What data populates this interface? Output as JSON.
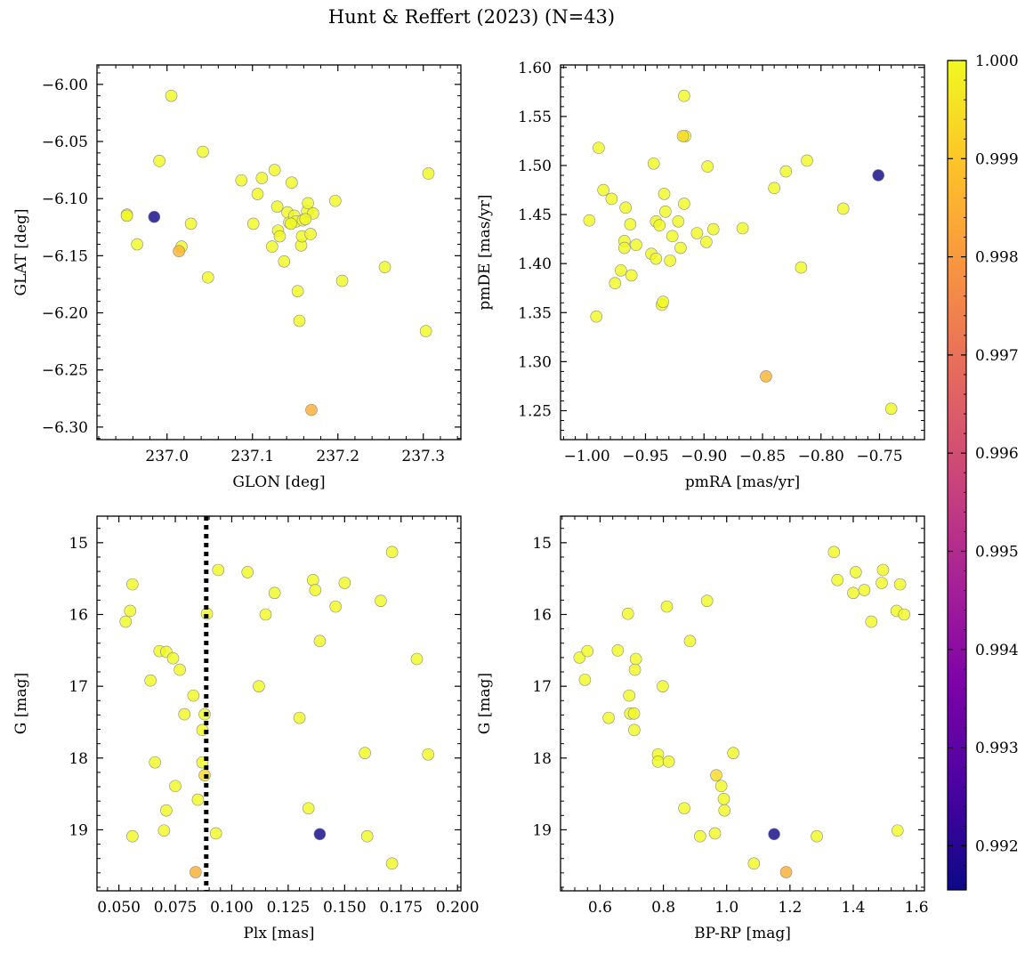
{
  "chart_data": {
    "type": "scatter",
    "title": "Hunt & Reffert (2023) (N=43)",
    "colorbar": {
      "colormap": "plasma",
      "vmin": 0.99155,
      "vmax": 1.0,
      "ticks": [
        0.992,
        0.993,
        0.994,
        0.995,
        0.996,
        0.997,
        0.998,
        0.999,
        1.0
      ],
      "tick_labels": [
        "0.992",
        "0.993",
        "0.994",
        "0.995",
        "0.996",
        "0.997",
        "0.998",
        "0.999",
        "1.000"
      ],
      "location": "right"
    },
    "panels": [
      {
        "id": "glon-glat",
        "xlabel": "GLON [deg]",
        "ylabel": "GLAT [deg]",
        "xlim": [
          236.918,
          237.344
        ],
        "ylim": [
          -6.311,
          -5.983
        ],
        "invert_y": false,
        "xticks": [
          237.0,
          237.1,
          237.2,
          237.3
        ],
        "xtick_labels": [
          "237.0",
          "237.1",
          "237.2",
          "237.3"
        ],
        "yticks": [
          -6.3,
          -6.25,
          -6.2,
          -6.15,
          -6.1,
          -6.05,
          -6.0
        ],
        "ytick_labels": [
          "−6.30",
          "−6.25",
          "−6.20",
          "−6.15",
          "−6.10",
          "−6.05",
          "−6.00"
        ],
        "points": [
          [
            236.953,
            -6.114,
            1.0
          ],
          [
            236.953,
            -6.115,
            1.0
          ],
          [
            236.985,
            -6.116,
            0.9916
          ],
          [
            236.965,
            -6.14,
            1.0
          ],
          [
            236.991,
            -6.067,
            1.0
          ],
          [
            237.005,
            -6.01,
            1.0
          ],
          [
            237.014,
            -6.146,
            0.9986
          ],
          [
            237.017,
            -6.142,
            1.0
          ],
          [
            237.028,
            -6.122,
            1.0
          ],
          [
            237.042,
            -6.059,
            1.0
          ],
          [
            237.048,
            -6.169,
            1.0
          ],
          [
            237.087,
            -6.084,
            1.0
          ],
          [
            237.101,
            -6.122,
            1.0
          ],
          [
            237.106,
            -6.096,
            1.0
          ],
          [
            237.111,
            -6.082,
            1.0
          ],
          [
            237.123,
            -6.142,
            1.0
          ],
          [
            237.126,
            -6.075,
            1.0
          ],
          [
            237.129,
            -6.107,
            1.0
          ],
          [
            237.13,
            -6.128,
            1.0
          ],
          [
            237.132,
            -6.133,
            1.0
          ],
          [
            237.137,
            -6.155,
            1.0
          ],
          [
            237.141,
            -6.112,
            1.0
          ],
          [
            237.143,
            -6.121,
            1.0
          ],
          [
            237.146,
            -6.086,
            1.0
          ],
          [
            237.149,
            -6.115,
            1.0
          ],
          [
            237.151,
            -6.12,
            1.0
          ],
          [
            237.153,
            -6.181,
            1.0
          ],
          [
            237.155,
            -6.207,
            1.0
          ],
          [
            237.157,
            -6.141,
            1.0
          ],
          [
            237.158,
            -6.133,
            1.0
          ],
          [
            237.159,
            -6.119,
            1.0
          ],
          [
            237.164,
            -6.111,
            1.0
          ],
          [
            237.165,
            -6.104,
            1.0
          ],
          [
            237.168,
            -6.131,
            1.0
          ],
          [
            237.169,
            -6.285,
            0.9985
          ],
          [
            237.171,
            -6.113,
            1.0
          ],
          [
            237.197,
            -6.102,
            1.0
          ],
          [
            237.205,
            -6.172,
            1.0
          ],
          [
            237.255,
            -6.16,
            1.0
          ],
          [
            237.303,
            -6.216,
            1.0
          ],
          [
            237.306,
            -6.078,
            1.0
          ],
          [
            237.162,
            -6.118,
            1.0
          ],
          [
            237.145,
            -6.122,
            1.0
          ]
        ]
      },
      {
        "id": "pmra-pmde",
        "xlabel": "pmRA [mas/yr]",
        "ylabel": "pmDE [mas/yr]",
        "xlim": [
          -1.0226,
          -0.7116
        ],
        "ylim": [
          1.2205,
          1.6025
        ],
        "invert_y": false,
        "xticks": [
          -1.0,
          -0.95,
          -0.9,
          -0.85,
          -0.8,
          -0.75
        ],
        "xtick_labels": [
          "−1.00",
          "−0.95",
          "−0.90",
          "−0.85",
          "−0.80",
          "−0.75"
        ],
        "yticks": [
          1.25,
          1.3,
          1.35,
          1.4,
          1.45,
          1.5,
          1.55,
          1.6
        ],
        "ytick_labels": [
          "1.25",
          "1.30",
          "1.35",
          "1.40",
          "1.45",
          "1.50",
          "1.55",
          "1.60"
        ],
        "points": [
          [
            -0.998,
            1.444,
            1.0
          ],
          [
            -0.99,
            1.518,
            1.0
          ],
          [
            -0.992,
            1.346,
            1.0
          ],
          [
            -0.986,
            1.475,
            1.0
          ],
          [
            -0.979,
            1.466,
            1.0
          ],
          [
            -0.976,
            1.38,
            1.0
          ],
          [
            -0.971,
            1.393,
            1.0
          ],
          [
            -0.968,
            1.423,
            1.0
          ],
          [
            -0.968,
            1.416,
            1.0
          ],
          [
            -0.967,
            1.457,
            1.0
          ],
          [
            -0.963,
            1.44,
            1.0
          ],
          [
            -0.962,
            1.388,
            1.0
          ],
          [
            -0.958,
            1.419,
            1.0
          ],
          [
            -0.945,
            1.41,
            1.0
          ],
          [
            -0.943,
            1.502,
            1.0
          ],
          [
            -0.941,
            1.443,
            1.0
          ],
          [
            -0.941,
            1.405,
            1.0
          ],
          [
            -0.938,
            1.439,
            1.0
          ],
          [
            -0.936,
            1.358,
            1.0
          ],
          [
            -0.935,
            1.361,
            1.0
          ],
          [
            -0.934,
            1.471,
            1.0
          ],
          [
            -0.933,
            1.453,
            1.0
          ],
          [
            -0.929,
            1.403,
            1.0
          ],
          [
            -0.927,
            1.428,
            1.0
          ],
          [
            -0.922,
            1.443,
            1.0
          ],
          [
            -0.92,
            1.416,
            1.0
          ],
          [
            -0.918,
            1.53,
            0.9994
          ],
          [
            -0.917,
            1.571,
            1.0
          ],
          [
            -0.917,
            1.461,
            1.0
          ],
          [
            -0.916,
            1.53,
            1.0
          ],
          [
            -0.906,
            1.431,
            1.0
          ],
          [
            -0.898,
            1.422,
            1.0
          ],
          [
            -0.897,
            1.499,
            1.0
          ],
          [
            -0.892,
            1.435,
            1.0
          ],
          [
            -0.867,
            1.436,
            1.0
          ],
          [
            -0.847,
            1.285,
            0.9986
          ],
          [
            -0.84,
            1.477,
            1.0
          ],
          [
            -0.83,
            1.494,
            1.0
          ],
          [
            -0.817,
            1.396,
            1.0
          ],
          [
            -0.812,
            1.505,
            1.0
          ],
          [
            -0.781,
            1.456,
            1.0
          ],
          [
            -0.751,
            1.49,
            0.9916
          ],
          [
            -0.74,
            1.252,
            1.0
          ]
        ]
      },
      {
        "id": "plx-g",
        "xlabel": "Plx [mas]",
        "ylabel": "G [mag]",
        "xlim": [
          0.0403,
          0.2015
        ],
        "ylim": [
          19.85,
          14.63
        ],
        "invert_y": true,
        "vline": {
          "x": 0.0887,
          "style": "dotted",
          "color": "#000000"
        },
        "xticks": [
          0.05,
          0.075,
          0.1,
          0.125,
          0.15,
          0.175,
          0.2
        ],
        "xtick_labels": [
          "0.050",
          "0.075",
          "0.100",
          "0.125",
          "0.150",
          "0.175",
          "0.200"
        ],
        "yticks": [
          15,
          16,
          17,
          18,
          19
        ],
        "ytick_labels": [
          "15",
          "16",
          "17",
          "18",
          "19"
        ],
        "points": [
          [
            0.053,
            16.1,
            1.0
          ],
          [
            0.055,
            15.95,
            1.0
          ],
          [
            0.056,
            15.58,
            1.0
          ],
          [
            0.056,
            19.09,
            1.0
          ],
          [
            0.064,
            16.92,
            1.0
          ],
          [
            0.066,
            18.06,
            1.0
          ],
          [
            0.068,
            16.51,
            1.0
          ],
          [
            0.07,
            19.01,
            1.0
          ],
          [
            0.071,
            18.73,
            1.0
          ],
          [
            0.071,
            16.52,
            1.0
          ],
          [
            0.074,
            16.61,
            1.0
          ],
          [
            0.075,
            18.39,
            1.0
          ],
          [
            0.077,
            16.77,
            1.0
          ],
          [
            0.079,
            17.39,
            1.0
          ],
          [
            0.083,
            17.13,
            1.0
          ],
          [
            0.084,
            19.59,
            0.9985
          ],
          [
            0.085,
            18.58,
            1.0
          ],
          [
            0.087,
            17.61,
            1.0
          ],
          [
            0.087,
            18.06,
            1.0
          ],
          [
            0.088,
            18.24,
            0.9994
          ],
          [
            0.088,
            17.39,
            1.0
          ],
          [
            0.089,
            15.99,
            1.0
          ],
          [
            0.093,
            19.05,
            1.0
          ],
          [
            0.094,
            15.38,
            1.0
          ],
          [
            0.107,
            15.41,
            1.0
          ],
          [
            0.112,
            17.0,
            1.0
          ],
          [
            0.115,
            16.0,
            1.0
          ],
          [
            0.119,
            15.7,
            1.0
          ],
          [
            0.13,
            17.44,
            1.0
          ],
          [
            0.134,
            18.7,
            1.0
          ],
          [
            0.136,
            15.52,
            1.0
          ],
          [
            0.137,
            15.66,
            1.0
          ],
          [
            0.139,
            16.37,
            1.0
          ],
          [
            0.139,
            19.06,
            0.9916
          ],
          [
            0.146,
            15.89,
            1.0
          ],
          [
            0.15,
            15.56,
            1.0
          ],
          [
            0.159,
            17.93,
            1.0
          ],
          [
            0.16,
            19.09,
            1.0
          ],
          [
            0.166,
            15.81,
            1.0
          ],
          [
            0.171,
            15.13,
            1.0
          ],
          [
            0.171,
            19.47,
            1.0
          ],
          [
            0.182,
            16.62,
            1.0
          ],
          [
            0.187,
            17.95,
            1.0
          ]
        ]
      },
      {
        "id": "bprp-g",
        "xlabel": "BP-RP [mag]",
        "ylabel": "G [mag]",
        "xlim": [
          0.475,
          1.625
        ],
        "ylim": [
          19.85,
          14.63
        ],
        "invert_y": true,
        "xticks": [
          0.6,
          0.8,
          1.0,
          1.2,
          1.4,
          1.6
        ],
        "xtick_labels": [
          "0.6",
          "0.8",
          "1.0",
          "1.2",
          "1.4",
          "1.6"
        ],
        "yticks": [
          15,
          16,
          17,
          18,
          19
        ],
        "ytick_labels": [
          "15",
          "16",
          "17",
          "18",
          "19"
        ],
        "points": [
          [
            0.535,
            16.6,
            1.0
          ],
          [
            0.552,
            16.91,
            1.0
          ],
          [
            0.56,
            16.51,
            1.0
          ],
          [
            0.627,
            17.44,
            1.0
          ],
          [
            0.656,
            16.5,
            1.0
          ],
          [
            0.688,
            15.99,
            1.0
          ],
          [
            0.692,
            17.13,
            1.0
          ],
          [
            0.695,
            17.38,
            1.0
          ],
          [
            0.707,
            17.38,
            1.0
          ],
          [
            0.708,
            17.61,
            1.0
          ],
          [
            0.71,
            16.77,
            1.0
          ],
          [
            0.713,
            16.62,
            1.0
          ],
          [
            0.783,
            17.95,
            1.0
          ],
          [
            0.783,
            18.05,
            1.0
          ],
          [
            0.798,
            17.0,
            1.0
          ],
          [
            0.811,
            15.89,
            1.0
          ],
          [
            0.817,
            18.05,
            1.0
          ],
          [
            0.866,
            18.7,
            1.0
          ],
          [
            0.884,
            16.37,
            1.0
          ],
          [
            0.916,
            19.09,
            1.0
          ],
          [
            0.938,
            15.81,
            1.0
          ],
          [
            0.963,
            19.05,
            1.0
          ],
          [
            0.967,
            18.24,
            0.9994
          ],
          [
            0.983,
            18.39,
            1.0
          ],
          [
            0.991,
            18.57,
            1.0
          ],
          [
            0.993,
            18.73,
            1.0
          ],
          [
            1.021,
            17.93,
            1.0
          ],
          [
            1.086,
            19.47,
            1.0
          ],
          [
            1.15,
            19.06,
            0.9916
          ],
          [
            1.188,
            19.59,
            0.9985
          ],
          [
            1.285,
            19.09,
            1.0
          ],
          [
            1.339,
            15.13,
            1.0
          ],
          [
            1.35,
            15.52,
            1.0
          ],
          [
            1.4,
            15.7,
            1.0
          ],
          [
            1.408,
            15.41,
            1.0
          ],
          [
            1.435,
            15.66,
            1.0
          ],
          [
            1.457,
            16.1,
            1.0
          ],
          [
            1.49,
            15.56,
            1.0
          ],
          [
            1.494,
            15.38,
            1.0
          ],
          [
            1.537,
            15.95,
            1.0
          ],
          [
            1.54,
            19.01,
            1.0
          ],
          [
            1.548,
            15.58,
            1.0
          ],
          [
            1.561,
            16.0,
            1.0
          ]
        ]
      }
    ]
  }
}
